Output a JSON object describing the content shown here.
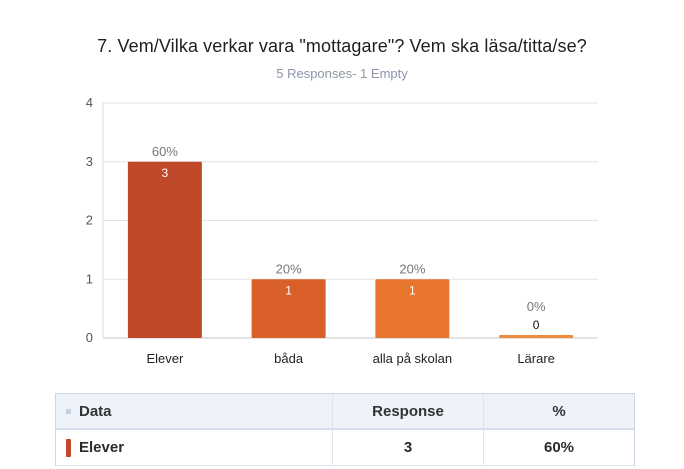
{
  "chart_data": {
    "type": "bar",
    "title": "7. Vem/Vilka verkar vara \"mottagare\"? Vem ska läsa/titta/se?",
    "subtitle": "5 Responses- 1 Empty",
    "categories": [
      "Elever",
      "båda",
      "alla på skolan",
      "Lärare"
    ],
    "values": [
      3,
      1,
      1,
      0
    ],
    "percent_labels": [
      "60%",
      "20%",
      "20%",
      "0%"
    ],
    "value_labels": [
      "3",
      "1",
      "1",
      "0"
    ],
    "colors": [
      "#c0492a",
      "#d9602b",
      "#e8762f",
      "#ef8a3c"
    ],
    "ylim": [
      0,
      4
    ],
    "yticks": [
      "0",
      "1",
      "2",
      "3",
      "4"
    ],
    "grid": true,
    "xlabel": "",
    "ylabel": ""
  },
  "table": {
    "headers": [
      "Data",
      "Response",
      "%"
    ],
    "rows": [
      {
        "label": "Elever",
        "response": "3",
        "percent": "60%",
        "color": "#c0492a"
      }
    ]
  }
}
